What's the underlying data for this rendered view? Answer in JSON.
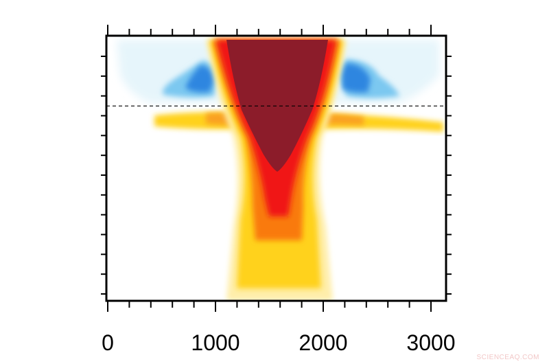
{
  "chart_data": {
    "type": "heatmap",
    "title": "",
    "xlabel": "",
    "ylabel": "",
    "xlim": [
      0,
      3150
    ],
    "x_ticks": [
      0,
      1000,
      2000,
      3000
    ],
    "x_tick_labels": [
      "0",
      "1000",
      "2000",
      "3000"
    ],
    "x_minor_step": 200,
    "y_tick_count": 13,
    "reference_line": {
      "style": "dashed",
      "y_fraction_from_top": 0.265
    },
    "colors": {
      "dark_red": "#8c1c2a",
      "red": "#f01818",
      "orange": "#f97a10",
      "yellow": "#ffd21e",
      "pale_yellow": "#ffeeaa",
      "blue": "#3a8ee8",
      "light_blue": "#7cc8f0",
      "pale_blue": "#e6f5fb"
    }
  },
  "watermark": "SCIENCEAQ.COM"
}
